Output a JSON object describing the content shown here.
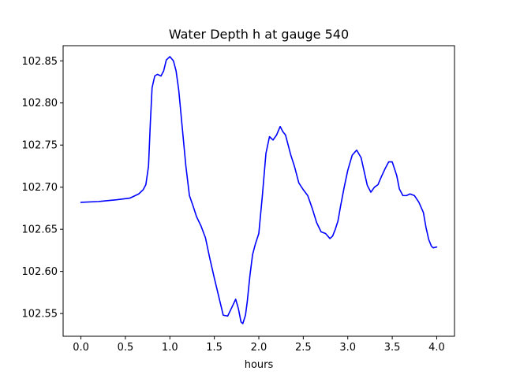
{
  "chart_data": {
    "type": "line",
    "title": "Water Depth h at gauge 540",
    "xlabel": "hours",
    "ylabel": "",
    "xlim": [
      -0.2,
      4.2
    ],
    "ylim": [
      102.523,
      102.868
    ],
    "xticks": [
      0.0,
      0.5,
      1.0,
      1.5,
      2.0,
      2.5,
      3.0,
      3.5,
      4.0
    ],
    "xtick_labels": [
      "0.0",
      "0.5",
      "1.0",
      "1.5",
      "2.0",
      "2.5",
      "3.0",
      "3.5",
      "4.0"
    ],
    "yticks": [
      102.55,
      102.6,
      102.65,
      102.7,
      102.75,
      102.8,
      102.85
    ],
    "ytick_labels": [
      "102.55",
      "102.60",
      "102.65",
      "102.70",
      "102.75",
      "102.80",
      "102.85"
    ],
    "grid": false,
    "series": [
      {
        "color": "#0000ff",
        "x": [
          0.0,
          0.2,
          0.4,
          0.55,
          0.65,
          0.7,
          0.73,
          0.76,
          0.78,
          0.8,
          0.83,
          0.86,
          0.9,
          0.93,
          0.96,
          1.0,
          1.04,
          1.07,
          1.1,
          1.14,
          1.18,
          1.22,
          1.26,
          1.3,
          1.35,
          1.4,
          1.45,
          1.5,
          1.55,
          1.6,
          1.65,
          1.7,
          1.74,
          1.77,
          1.8,
          1.82,
          1.85,
          1.87,
          1.9,
          1.93,
          1.96,
          2.0,
          2.04,
          2.08,
          2.12,
          2.16,
          2.2,
          2.24,
          2.27,
          2.3,
          2.33,
          2.36,
          2.4,
          2.45,
          2.5,
          2.55,
          2.6,
          2.65,
          2.7,
          2.75,
          2.8,
          2.83,
          2.86,
          2.89,
          2.92,
          2.96,
          3.0,
          3.05,
          3.1,
          3.15,
          3.19,
          3.22,
          3.26,
          3.3,
          3.34,
          3.38,
          3.42,
          3.46,
          3.5,
          3.55,
          3.58,
          3.62,
          3.66,
          3.7,
          3.75,
          3.8,
          3.85,
          3.88,
          3.91,
          3.94,
          3.96,
          4.0
        ],
        "y": [
          102.682,
          102.683,
          102.685,
          102.687,
          102.692,
          102.697,
          102.703,
          102.725,
          102.775,
          102.818,
          102.832,
          102.834,
          102.832,
          102.838,
          102.851,
          102.855,
          102.85,
          102.838,
          102.815,
          102.77,
          102.725,
          102.69,
          102.678,
          102.665,
          102.654,
          102.64,
          102.615,
          102.592,
          102.57,
          102.548,
          102.547,
          102.558,
          102.567,
          102.556,
          102.54,
          102.538,
          102.548,
          102.564,
          102.595,
          102.62,
          102.632,
          102.645,
          102.69,
          102.74,
          102.76,
          102.756,
          102.762,
          102.772,
          102.766,
          102.762,
          102.75,
          102.738,
          102.725,
          102.705,
          102.697,
          102.69,
          102.675,
          102.658,
          102.647,
          102.645,
          102.639,
          102.642,
          102.65,
          102.66,
          102.678,
          102.7,
          102.72,
          102.738,
          102.744,
          102.735,
          102.716,
          102.702,
          102.694,
          102.7,
          102.703,
          102.713,
          102.722,
          102.73,
          102.73,
          102.714,
          102.698,
          102.69,
          102.69,
          102.692,
          102.69,
          102.682,
          102.67,
          102.652,
          102.638,
          102.63,
          102.628,
          102.629
        ]
      }
    ]
  }
}
